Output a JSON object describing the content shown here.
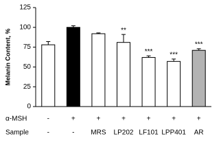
{
  "chart_data": {
    "type": "bar",
    "y_label": "Melanin Content, %",
    "values": [
      78,
      100,
      92,
      81,
      62,
      57,
      71
    ],
    "errors": [
      4,
      2,
      1,
      10,
      2,
      3,
      2
    ],
    "annotations": [
      null,
      null,
      null,
      "**",
      "***",
      "***",
      "***"
    ],
    "colors": [
      "#ffffff",
      "#000000",
      "#ffffff",
      "#ffffff",
      "#ffffff",
      "#ffffff",
      "#b3b3b3"
    ],
    "rows": [
      {
        "label": "α-MSH",
        "values": [
          "-",
          "+",
          "+",
          "+",
          "+",
          "+",
          "+"
        ]
      },
      {
        "label": "Sample",
        "values": [
          "-",
          "-",
          "MRS",
          "LP202",
          "LF101",
          "LPP401",
          "AR"
        ]
      }
    ],
    "ylim": [
      0,
      125
    ],
    "yticks": [
      0,
      25,
      50,
      75,
      100,
      125
    ]
  }
}
